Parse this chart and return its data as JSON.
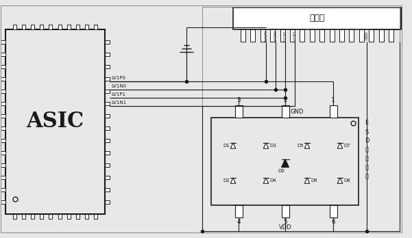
{
  "bg_color": "#e8e8e8",
  "line_color": "#1a1a1a",
  "asic_label": "ASIC",
  "connector_label": "连接器",
  "esd_v_label": [
    "E",
    "S",
    "D",
    "保",
    "护",
    "芯",
    "觑"
  ],
  "pins_left": [
    "LV1P0",
    "LV1N0",
    "LV1P1",
    "LV1N1"
  ],
  "gnd_label": "GND",
  "vdd_label": "VDD",
  "conn_sig_labels": [
    "LV1P0",
    "LV1N0",
    "LV1P1",
    "LV1N1",
    "GND"
  ],
  "diode_labels": [
    "D1",
    "D2",
    "D3",
    "D4",
    "D0",
    "D5",
    "D6",
    "D7",
    "D8"
  ],
  "pin_top_labels": [
    "3",
    "2",
    "1"
  ],
  "pin_bot_labels": [
    "4",
    "5",
    "6"
  ]
}
